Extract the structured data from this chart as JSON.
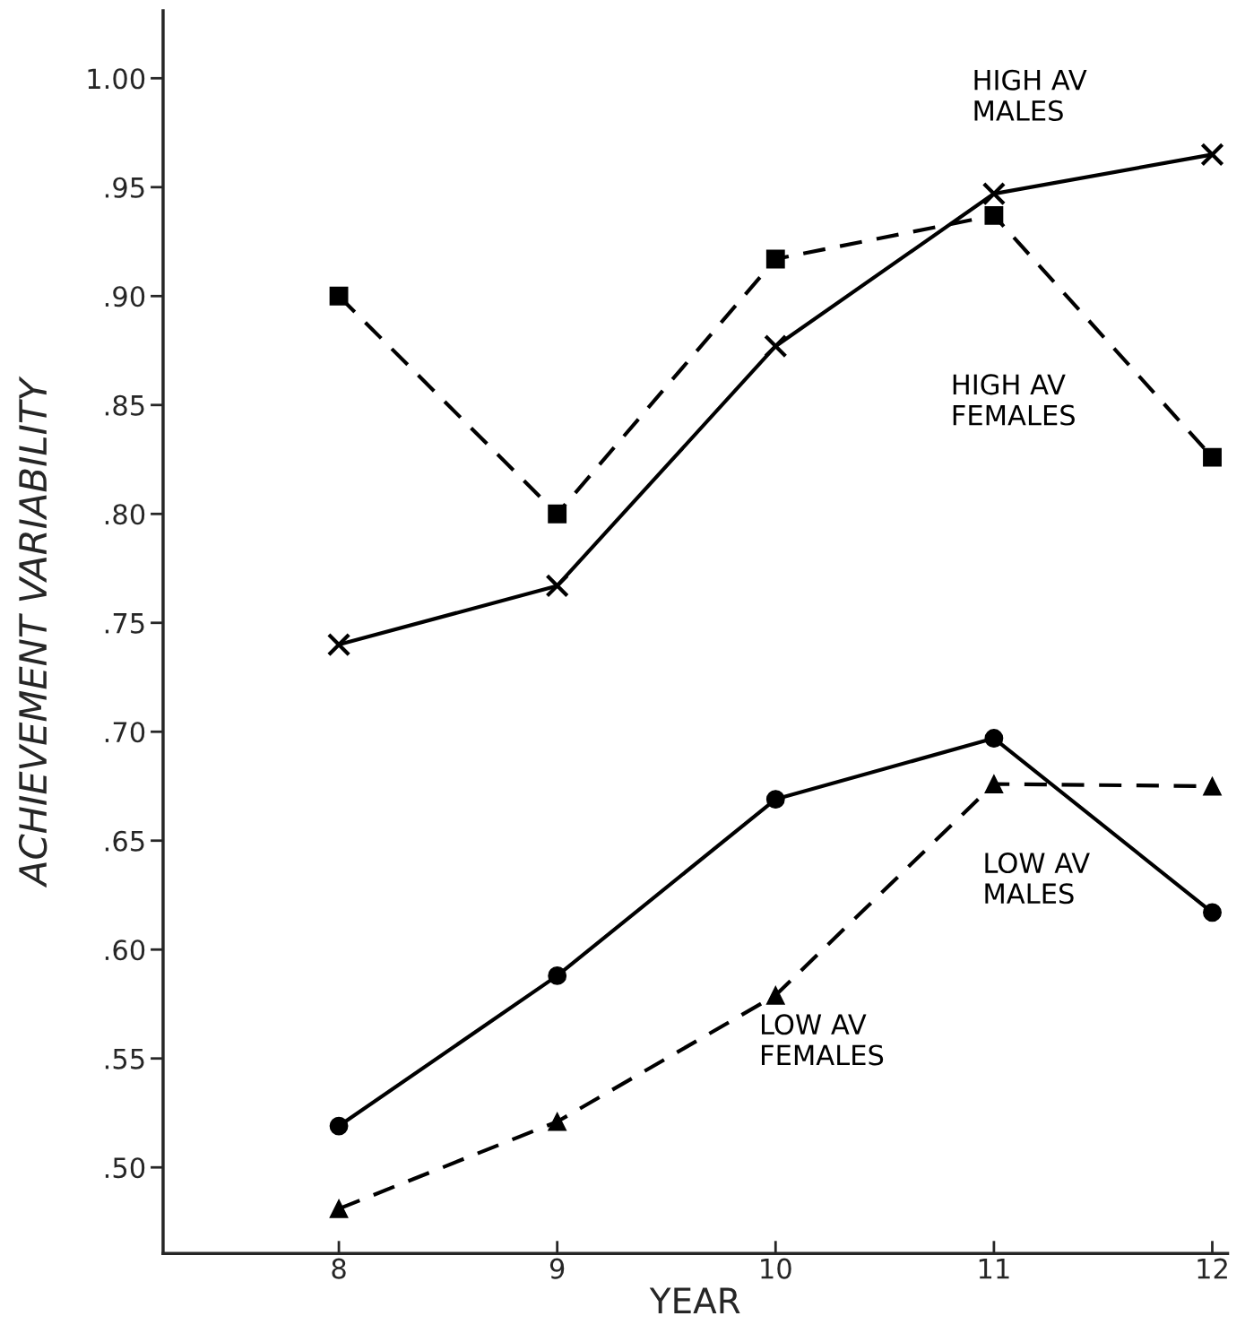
{
  "chart_data": {
    "type": "line",
    "xlabel": "YEAR",
    "ylabel": "ACHIEVEMENT VARIABILITY",
    "x": [
      8,
      9,
      10,
      11,
      12
    ],
    "series": [
      {
        "name": "HIGH AV\nMALES",
        "color": "#000000",
        "marker": "cross",
        "line_style": "solid",
        "values": [
          0.74,
          0.767,
          0.877,
          0.947,
          0.965
        ]
      },
      {
        "name": "HIGH AV\nFEMALES",
        "color": "#000000",
        "marker": "square",
        "line_style": "dashed",
        "values": [
          0.9,
          0.8,
          0.917,
          0.937,
          0.826
        ]
      },
      {
        "name": "LOW AV\nMALES",
        "color": "#000000",
        "marker": "circle",
        "line_style": "solid",
        "values": [
          0.519,
          0.588,
          0.669,
          0.697,
          0.617
        ]
      },
      {
        "name": "LOW AV\nFEMALES",
        "color": "#000000",
        "marker": "triangle",
        "line_style": "dashed",
        "values": [
          0.481,
          0.521,
          0.579,
          0.676,
          0.675
        ]
      }
    ],
    "xlim": [
      7.195,
      12.07
    ],
    "ylim": [
      0.4605,
      1.031
    ],
    "xticks": [
      8,
      9,
      10,
      11,
      12
    ],
    "yticks": [
      {
        "value": 0.5,
        "label": ".50"
      },
      {
        "value": 0.55,
        "label": ".55"
      },
      {
        "value": 0.6,
        "label": ".60"
      },
      {
        "value": 0.65,
        "label": ".65"
      },
      {
        "value": 0.7,
        "label": ".70"
      },
      {
        "value": 0.75,
        "label": ".75"
      },
      {
        "value": 0.8,
        "label": ".80"
      },
      {
        "value": 0.85,
        "label": ".85"
      },
      {
        "value": 0.9,
        "label": ".90"
      },
      {
        "value": 0.95,
        "label": ".95"
      },
      {
        "value": 1.0,
        "label": "1.00"
      }
    ],
    "grid": false,
    "legend": false
  }
}
